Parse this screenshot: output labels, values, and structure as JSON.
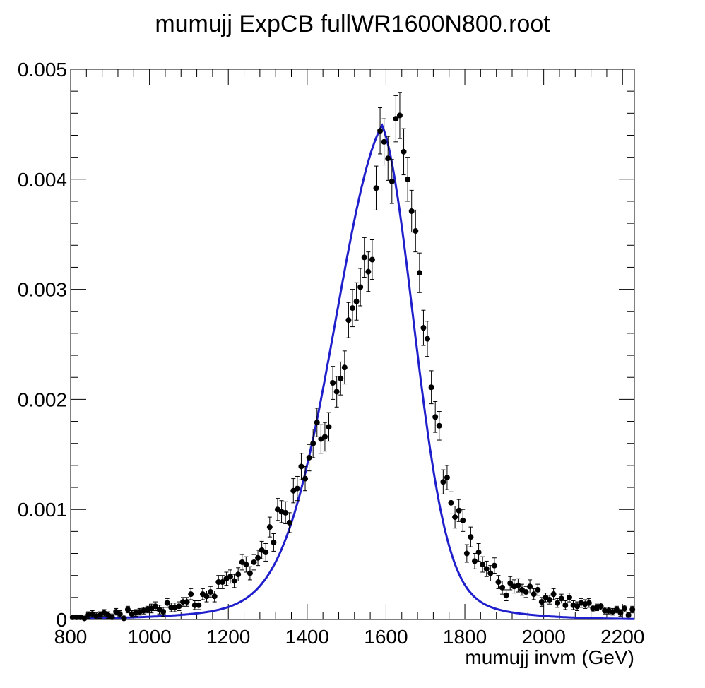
{
  "chart_data": {
    "type": "scatter",
    "title": "mumujj ExpCB fullWR1600N800.root",
    "xlabel": "mumujj invm (GeV)",
    "ylabel": "",
    "xlim": [
      800,
      2230
    ],
    "ylim": [
      0,
      0.005
    ],
    "xticks": [
      800,
      1000,
      1200,
      1400,
      1600,
      1800,
      2000,
      2200
    ],
    "xtick_labels": [
      "800",
      "1000",
      "1200",
      "1400",
      "1600",
      "1800",
      "2000",
      "2200"
    ],
    "yticks": [
      0,
      0.001,
      0.002,
      0.003,
      0.004,
      0.005
    ],
    "ytick_labels": [
      "0",
      "0.001",
      "0.002",
      "0.003",
      "0.004",
      "0.005"
    ],
    "grid": false,
    "legend": "none",
    "series": [
      {
        "kind": "points-with-errors",
        "color": "#000000",
        "points": [
          [
            805,
            2e-05,
            2e-05
          ],
          [
            815,
            2e-05,
            2e-05
          ],
          [
            825,
            2e-05,
            2e-05
          ],
          [
            835,
            1e-05,
            2e-05
          ],
          [
            845,
            4e-05,
            3e-05
          ],
          [
            855,
            5e-05,
            3e-05
          ],
          [
            865,
            3e-05,
            3e-05
          ],
          [
            875,
            4e-05,
            3e-05
          ],
          [
            885,
            6e-05,
            3e-05
          ],
          [
            895,
            4e-05,
            3e-05
          ],
          [
            905,
            2e-05,
            3e-05
          ],
          [
            915,
            7e-05,
            3e-05
          ],
          [
            925,
            5e-05,
            3e-05
          ],
          [
            935,
            1e-05,
            3e-05
          ],
          [
            945,
            9e-05,
            3e-05
          ],
          [
            955,
            5e-05,
            3e-05
          ],
          [
            965,
            6e-05,
            3e-05
          ],
          [
            975,
            7e-05,
            3e-05
          ],
          [
            985,
            8e-05,
            3e-05
          ],
          [
            995,
            9e-05,
            3e-05
          ],
          [
            1005,
            0.0001,
            4e-05
          ],
          [
            1015,
            0.00012,
            4e-05
          ],
          [
            1025,
            9e-05,
            4e-05
          ],
          [
            1035,
            7e-05,
            4e-05
          ],
          [
            1045,
            0.00015,
            4e-05
          ],
          [
            1055,
            0.00011,
            4e-05
          ],
          [
            1065,
            0.00011,
            4e-05
          ],
          [
            1075,
            0.00012,
            4e-05
          ],
          [
            1085,
            0.00016,
            4e-05
          ],
          [
            1095,
            0.00016,
            4e-05
          ],
          [
            1105,
            0.00023,
            5e-05
          ],
          [
            1115,
            0.00013,
            4e-05
          ],
          [
            1125,
            0.00013,
            4e-05
          ],
          [
            1135,
            0.00023,
            5e-05
          ],
          [
            1145,
            0.00021,
            5e-05
          ],
          [
            1155,
            0.00025,
            5e-05
          ],
          [
            1165,
            0.00021,
            5e-05
          ],
          [
            1175,
            0.00034,
            6e-05
          ],
          [
            1185,
            0.00034,
            6e-05
          ],
          [
            1195,
            0.00037,
            6e-05
          ],
          [
            1205,
            0.00039,
            6e-05
          ],
          [
            1215,
            0.00035,
            6e-05
          ],
          [
            1225,
            0.00041,
            6e-05
          ],
          [
            1235,
            0.00052,
            7e-05
          ],
          [
            1245,
            0.0005,
            7e-05
          ],
          [
            1255,
            0.00042,
            6e-05
          ],
          [
            1265,
            0.00052,
            7e-05
          ],
          [
            1275,
            0.00056,
            7e-05
          ],
          [
            1285,
            0.00063,
            8e-05
          ],
          [
            1295,
            0.00061,
            8e-05
          ],
          [
            1305,
            0.00084,
            9e-05
          ],
          [
            1315,
            0.0007,
            8e-05
          ],
          [
            1325,
            0.001,
            0.0001
          ],
          [
            1335,
            0.00098,
            0.0001
          ],
          [
            1345,
            0.00097,
            0.0001
          ],
          [
            1355,
            0.00088,
            9e-05
          ],
          [
            1365,
            0.00117,
            0.00011
          ],
          [
            1375,
            0.00119,
            0.00011
          ],
          [
            1385,
            0.00139,
            0.00012
          ],
          [
            1395,
            0.00128,
            0.00011
          ],
          [
            1405,
            0.00147,
            0.00012
          ],
          [
            1415,
            0.0016,
            0.00013
          ],
          [
            1425,
            0.00179,
            0.00013
          ],
          [
            1435,
            0.00164,
            0.00013
          ],
          [
            1445,
            0.00166,
            0.00013
          ],
          [
            1455,
            0.00175,
            0.00013
          ],
          [
            1465,
            0.00215,
            0.00015
          ],
          [
            1475,
            0.00207,
            0.00014
          ],
          [
            1485,
            0.00219,
            0.00015
          ],
          [
            1495,
            0.00229,
            0.00015
          ],
          [
            1505,
            0.00272,
            0.00016
          ],
          [
            1515,
            0.00283,
            0.00017
          ],
          [
            1525,
            0.00289,
            0.00017
          ],
          [
            1535,
            0.00302,
            0.00017
          ],
          [
            1545,
            0.00329,
            0.00018
          ],
          [
            1555,
            0.00316,
            0.00018
          ],
          [
            1565,
            0.00327,
            0.00018
          ],
          [
            1575,
            0.00392,
            0.0002
          ],
          [
            1585,
            0.00444,
            0.00021
          ],
          [
            1595,
            0.00434,
            0.00021
          ],
          [
            1605,
            0.00419,
            0.0002
          ],
          [
            1615,
            0.00398,
            0.0002
          ],
          [
            1625,
            0.00455,
            0.00021
          ],
          [
            1635,
            0.00458,
            0.00021
          ],
          [
            1645,
            0.00425,
            0.00021
          ],
          [
            1655,
            0.004,
            0.0002
          ],
          [
            1665,
            0.00371,
            0.00019
          ],
          [
            1675,
            0.00353,
            0.00019
          ],
          [
            1685,
            0.00315,
            0.00018
          ],
          [
            1695,
            0.00265,
            0.00016
          ],
          [
            1705,
            0.00255,
            0.00016
          ],
          [
            1715,
            0.00211,
            0.00015
          ],
          [
            1725,
            0.00184,
            0.00014
          ],
          [
            1735,
            0.00176,
            0.00013
          ],
          [
            1745,
            0.00125,
            0.00011
          ],
          [
            1755,
            0.00129,
            0.00011
          ],
          [
            1765,
            0.00106,
            0.0001
          ],
          [
            1775,
            0.00093,
            0.0001
          ],
          [
            1785,
            0.00099,
            0.0001
          ],
          [
            1795,
            0.0009,
            0.0001
          ],
          [
            1805,
            0.0006,
            8e-05
          ],
          [
            1815,
            0.00075,
            9e-05
          ],
          [
            1825,
            0.00053,
            7e-05
          ],
          [
            1835,
            0.00061,
            8e-05
          ],
          [
            1845,
            0.0005,
            7e-05
          ],
          [
            1855,
            0.00046,
            7e-05
          ],
          [
            1865,
            0.00042,
            7e-05
          ],
          [
            1875,
            0.00049,
            7e-05
          ],
          [
            1885,
            0.00034,
            6e-05
          ],
          [
            1895,
            0.00029,
            6e-05
          ],
          [
            1905,
            0.00022,
            5e-05
          ],
          [
            1915,
            0.00033,
            6e-05
          ],
          [
            1925,
            0.0003,
            6e-05
          ],
          [
            1935,
            0.00031,
            6e-05
          ],
          [
            1945,
            0.00027,
            5e-05
          ],
          [
            1955,
            0.00025,
            5e-05
          ],
          [
            1965,
            0.0003,
            6e-05
          ],
          [
            1975,
            0.00023,
            5e-05
          ],
          [
            1985,
            0.00027,
            5e-05
          ],
          [
            1995,
            0.00016,
            4e-05
          ],
          [
            2005,
            0.0002,
            4e-05
          ],
          [
            2015,
            0.00018,
            4e-05
          ],
          [
            2025,
            0.00023,
            5e-05
          ],
          [
            2035,
            0.00015,
            4e-05
          ],
          [
            2045,
            0.00019,
            4e-05
          ],
          [
            2055,
            0.00013,
            4e-05
          ],
          [
            2065,
            0.0002,
            4e-05
          ],
          [
            2075,
            0.00013,
            4e-05
          ],
          [
            2085,
            0.00012,
            4e-05
          ],
          [
            2095,
            0.00015,
            4e-05
          ],
          [
            2105,
            0.00014,
            4e-05
          ],
          [
            2115,
            0.00015,
            4e-05
          ],
          [
            2125,
            0.0001,
            3e-05
          ],
          [
            2135,
            0.00011,
            3e-05
          ],
          [
            2145,
            0.00012,
            3e-05
          ],
          [
            2155,
            8e-05,
            3e-05
          ],
          [
            2165,
            8e-05,
            3e-05
          ],
          [
            2175,
            7e-05,
            3e-05
          ],
          [
            2185,
            9e-05,
            3e-05
          ],
          [
            2195,
            6e-05,
            3e-05
          ],
          [
            2205,
            0.0001,
            3e-05
          ],
          [
            2215,
            4e-05,
            2e-05
          ],
          [
            2225,
            9e-05,
            3e-05
          ]
        ]
      },
      {
        "kind": "fit-curve",
        "color": "#1f1fcc",
        "model": {
          "mean": 1590,
          "peak": 0.00449,
          "sigma_left": 125,
          "sigma_right": 83,
          "tail_left": 160,
          "tail_right": 120
        }
      }
    ]
  }
}
